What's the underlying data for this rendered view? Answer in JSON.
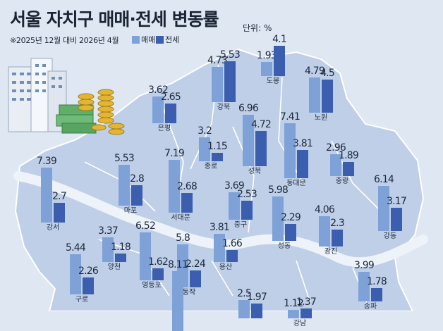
{
  "header": {
    "title": "서울 자치구 매매·전세 변동률",
    "unit": "단위: %",
    "period": "※2025년 12월 대비 2026년 4월"
  },
  "legend": {
    "sale": "매매",
    "jeonse": "전세"
  },
  "colors": {
    "sale": "#7ea2d8",
    "jeonse": "#3b5fae",
    "map_land": "#bfcfe8",
    "background": "#dfe7f3"
  },
  "chart_data": {
    "type": "bar",
    "title": "서울 자치구 매매·전세 변동률",
    "subtitle": "※2025년 12월 대비 2026년 4월",
    "unit": "단위: %",
    "series_names": [
      "매매",
      "전세"
    ],
    "districts": [
      {
        "name": "강북",
        "sale": 4.73,
        "jeonse": 5.53
      },
      {
        "name": "도봉",
        "sale": 1.93,
        "jeonse": 4.1
      },
      {
        "name": "노원",
        "sale": 4.79,
        "jeonse": 4.5
      },
      {
        "name": "은평",
        "sale": 3.62,
        "jeonse": 2.65
      },
      {
        "name": "종로",
        "sale": 3.2,
        "jeonse": 1.15
      },
      {
        "name": "성북",
        "sale": 6.96,
        "jeonse": 4.72
      },
      {
        "name": "동대문",
        "sale": 7.41,
        "jeonse": 3.81
      },
      {
        "name": "중랑",
        "sale": 2.96,
        "jeonse": 1.89
      },
      {
        "name": "강서",
        "sale": 7.39,
        "jeonse": 2.7
      },
      {
        "name": "마포",
        "sale": 5.53,
        "jeonse": 2.8
      },
      {
        "name": "서대문",
        "sale": 7.19,
        "jeonse": 2.68
      },
      {
        "name": "중구",
        "sale": 3.69,
        "jeonse": 2.53
      },
      {
        "name": "성동",
        "sale": 5.98,
        "jeonse": 2.29
      },
      {
        "name": "광진",
        "sale": 4.06,
        "jeonse": 2.3
      },
      {
        "name": "강동",
        "sale": 6.14,
        "jeonse": 3.17
      },
      {
        "name": "양천",
        "sale": 3.37,
        "jeonse": 1.18
      },
      {
        "name": "영등포",
        "sale": 6.52,
        "jeonse": 1.62
      },
      {
        "name": "동작",
        "sale": 5.8,
        "jeonse": 2.24
      },
      {
        "name": "용산",
        "sale": 3.81,
        "jeonse": 1.66
      },
      {
        "name": "구로",
        "sale": 5.44,
        "jeonse": 2.26
      },
      {
        "name": "송파",
        "sale": 3.99,
        "jeonse": 1.78
      },
      {
        "name": "",
        "sale": 2.5,
        "jeonse": 1.97
      },
      {
        "name": "강남",
        "sale": 1.12,
        "jeonse": 1.37
      },
      {
        "name": "",
        "sale": 8.11,
        "jeonse": null
      }
    ]
  }
}
